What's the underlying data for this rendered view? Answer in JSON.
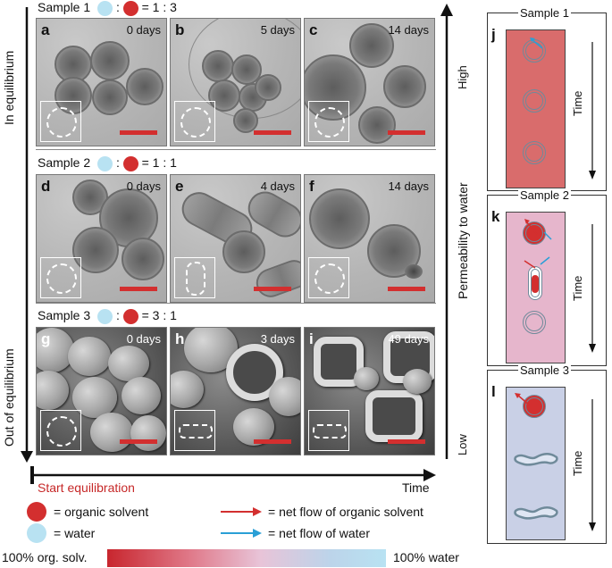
{
  "labels": {
    "in_equilibrium": "In equilibrium",
    "out_of_equilibrium": "Out of equilibrium",
    "permeability": "Permeability to water",
    "high": "High",
    "low": "Low",
    "time_axis": "Time",
    "start_equilibration": "Start equilibration"
  },
  "samples": [
    {
      "title": "Sample 1",
      "ratio": "= 1 : 3",
      "panels": [
        {
          "letter": "a",
          "time": "0 days"
        },
        {
          "letter": "b",
          "time": "5 days"
        },
        {
          "letter": "c",
          "time": "14 days"
        }
      ]
    },
    {
      "title": "Sample 2",
      "ratio": "= 1 : 1",
      "panels": [
        {
          "letter": "d",
          "time": "0 days"
        },
        {
          "letter": "e",
          "time": "4 days"
        },
        {
          "letter": "f",
          "time": "14 days"
        }
      ]
    },
    {
      "title": "Sample 3",
      "ratio": "= 3 : 1",
      "panels": [
        {
          "letter": "g",
          "time": "0 days"
        },
        {
          "letter": "h",
          "time": "3 days"
        },
        {
          "letter": "i",
          "time": "49 days"
        }
      ]
    }
  ],
  "right_panels": [
    {
      "letter": "j",
      "title": "Sample 1",
      "time": "Time"
    },
    {
      "letter": "k",
      "title": "Sample 2",
      "time": "Time"
    },
    {
      "letter": "l",
      "title": "Sample 3",
      "time": "Time"
    }
  ],
  "legend": {
    "organic": "= organic solvent",
    "water": "= water",
    "flow_organic": "= net flow of organic solvent",
    "flow_water": "= net flow of water"
  },
  "gradient": {
    "left": "100% org. solv.",
    "right": "100% water"
  },
  "colors": {
    "organic": "#d32f2f",
    "water": "#b8e2f2",
    "sample1_bg": "#d96c6c",
    "sample2_bg": "#e6b6cc",
    "sample3_bg": "#c9d0e6",
    "arrow_blue": "#2a9fd6"
  }
}
